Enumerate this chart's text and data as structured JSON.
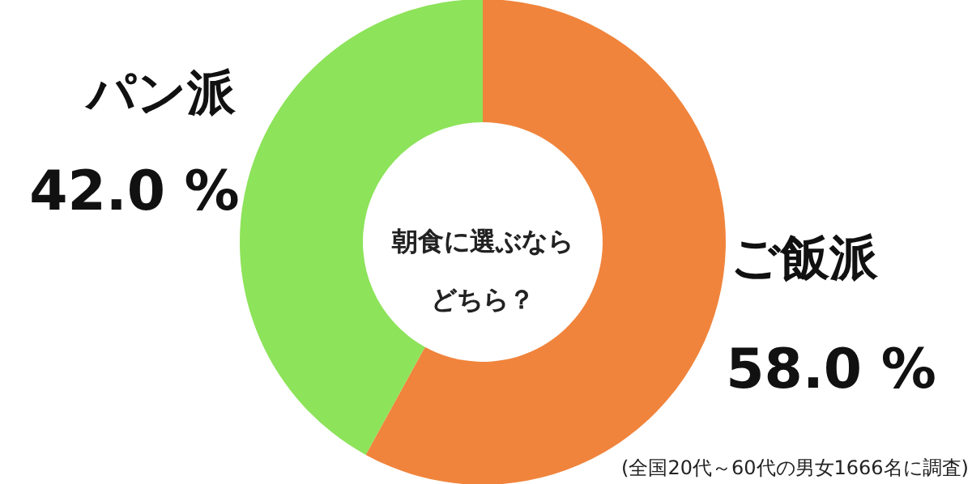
{
  "chart_data": {
    "type": "donut",
    "title": "朝食に選ぶならどちら？",
    "categories": [
      "ご飯派",
      "パン派"
    ],
    "values": [
      58.0,
      42.0
    ],
    "colors": [
      "#f0843c",
      "#8de35a"
    ],
    "value_labels": [
      "58.0 %",
      "42.0 %"
    ],
    "annotations": [
      "(全国20代～60代の男女1666名に調査)"
    ]
  }
}
